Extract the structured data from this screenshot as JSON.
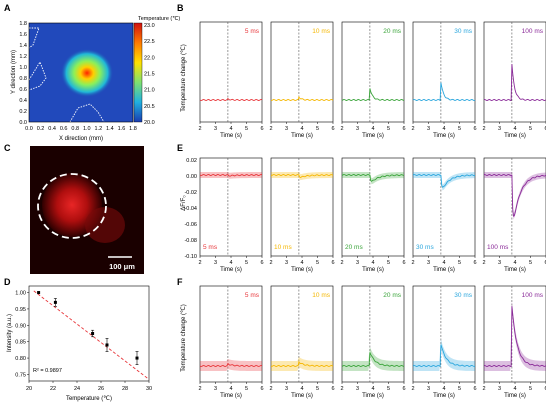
{
  "figure": {
    "panels": {
      "A": {
        "letter": "A",
        "x_label": "X direction (mm)",
        "y_label": "Y direction (mm)",
        "ticks": [
          "0.0",
          "0.2",
          "0.4",
          "0.6",
          "0.8",
          "1.0",
          "1.2",
          "1.4",
          "1.6",
          "1.8"
        ],
        "colorbar_title": "Temperature (℃)",
        "colorbar_ticks": [
          "23.0",
          "22.5",
          "22.0",
          "21.5",
          "21.0",
          "20.5",
          "20.0"
        ]
      },
      "B": {
        "letter": "B",
        "y_label": "Temperature change (℃)",
        "x_label": "Time (s)"
      },
      "C": {
        "letter": "C",
        "scale_bar": "100 μm"
      },
      "D": {
        "letter": "D",
        "x_label": "Temperature (℃)",
        "y_label": "Intensity (a.u.)",
        "r2": "R² = 0.9897",
        "x_ticks": [
          "20",
          "22",
          "24",
          "26",
          "28",
          "30"
        ],
        "y_ticks": [
          "1.00",
          "0.95",
          "0.90",
          "0.85",
          "0.80",
          "0.75"
        ]
      },
      "E": {
        "letter": "E",
        "y_label": "ΔF/F₀",
        "x_label": "Time (s)",
        "y_ticks": [
          "0.02",
          "0.00",
          "-0.02",
          "-0.04",
          "-0.06",
          "-0.08",
          "-0.10"
        ]
      },
      "F": {
        "letter": "F",
        "y_label": "Temperature change (℃)",
        "x_label": "Time (s)"
      }
    },
    "pulse_labels": [
      "5 ms",
      "10 ms",
      "20 ms",
      "30 ms",
      "100 ms"
    ],
    "pulse_colors": [
      "#e8363a",
      "#f5b700",
      "#3aa43a",
      "#2aa6dd",
      "#8a2a98"
    ],
    "time_ticks": [
      "2",
      "3",
      "4",
      "5",
      "6"
    ]
  },
  "chart_data": [
    {
      "type": "heatmap",
      "title": "",
      "xlabel": "X direction (mm)",
      "ylabel": "Y direction (mm)",
      "xlim": [
        0,
        1.8
      ],
      "ylim": [
        0,
        1.8
      ],
      "colorbar": {
        "label": "Temperature (℃)",
        "range": [
          20.0,
          23.0
        ]
      },
      "hotspot": {
        "x": 1.0,
        "y": 0.98,
        "max_temperature": 23.0
      }
    },
    {
      "type": "line",
      "panel": "B",
      "xlabel": "Time (s)",
      "ylabel": "Temperature change (℃)",
      "xlim": [
        2,
        6
      ],
      "stimulus_time": 3.8,
      "series": [
        {
          "name": "5 ms",
          "peak": 0.05
        },
        {
          "name": "10 ms",
          "peak": 0.15
        },
        {
          "name": "20 ms",
          "peak": 0.6
        },
        {
          "name": "30 ms",
          "peak": 1.0
        },
        {
          "name": "100 ms",
          "peak": 2.2
        }
      ]
    },
    {
      "type": "line",
      "panel": "E",
      "xlabel": "Time (s)",
      "ylabel": "ΔF/F₀",
      "xlim": [
        2,
        6
      ],
      "ylim": [
        -0.1,
        0.02
      ],
      "stimulus_time": 3.8,
      "series": [
        {
          "name": "5 ms",
          "min": -0.002
        },
        {
          "name": "10 ms",
          "min": -0.004
        },
        {
          "name": "20 ms",
          "min": -0.012
        },
        {
          "name": "30 ms",
          "min": -0.022
        },
        {
          "name": "100 ms",
          "min": -0.068
        }
      ]
    },
    {
      "type": "scatter",
      "panel": "D",
      "xlabel": "Temperature (℃)",
      "ylabel": "Intensity (a.u.)",
      "xlim": [
        20,
        30
      ],
      "ylim": [
        0.73,
        1.02
      ],
      "points": [
        {
          "x": 20.8,
          "y": 1.0,
          "err": 0.0
        },
        {
          "x": 22.2,
          "y": 0.97,
          "err": 0.012
        },
        {
          "x": 25.3,
          "y": 0.875,
          "err": 0.01
        },
        {
          "x": 26.5,
          "y": 0.84,
          "err": 0.02
        },
        {
          "x": 29.0,
          "y": 0.8,
          "err": 0.02
        }
      ],
      "fit": {
        "x": [
          20.4,
          30.0
        ],
        "y": [
          1.005,
          0.735
        ]
      },
      "annotation": "R² = 0.9897"
    },
    {
      "type": "line",
      "panel": "F",
      "xlabel": "Time (s)",
      "ylabel": "Temperature change (℃)",
      "xlim": [
        2,
        6
      ],
      "stimulus_time": 3.8,
      "series": [
        {
          "name": "5 ms",
          "peak": 0.1
        },
        {
          "name": "10 ms",
          "peak": 0.2
        },
        {
          "name": "20 ms",
          "peak": 0.5
        },
        {
          "name": "30 ms",
          "peak": 1.0
        },
        {
          "name": "100 ms",
          "peak": 2.6
        }
      ]
    }
  ]
}
